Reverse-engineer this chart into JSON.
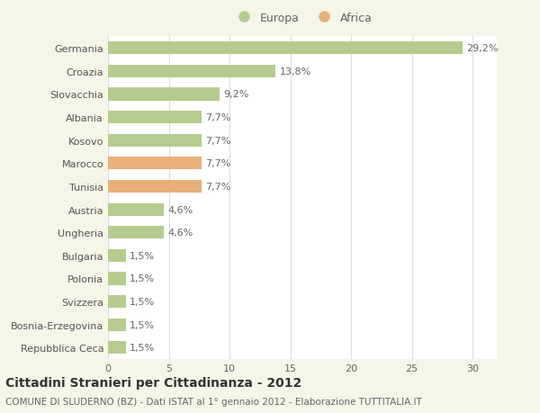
{
  "categories": [
    "Germania",
    "Croazia",
    "Slovacchia",
    "Albania",
    "Kosovo",
    "Marocco",
    "Tunisia",
    "Austria",
    "Ungheria",
    "Bulgaria",
    "Polonia",
    "Svizzera",
    "Bosnia-Erzegovina",
    "Repubblica Ceca"
  ],
  "values": [
    29.2,
    13.8,
    9.2,
    7.7,
    7.7,
    7.7,
    7.7,
    4.6,
    4.6,
    1.5,
    1.5,
    1.5,
    1.5,
    1.5
  ],
  "labels": [
    "29,2%",
    "13,8%",
    "9,2%",
    "7,7%",
    "7,7%",
    "7,7%",
    "7,7%",
    "4,6%",
    "4,6%",
    "1,5%",
    "1,5%",
    "1,5%",
    "1,5%",
    "1,5%"
  ],
  "continent": [
    "Europa",
    "Europa",
    "Europa",
    "Europa",
    "Europa",
    "Africa",
    "Africa",
    "Europa",
    "Europa",
    "Europa",
    "Europa",
    "Europa",
    "Europa",
    "Europa"
  ],
  "color_europa": "#b5cc8e",
  "color_africa": "#e8b07a",
  "background_color": "#f5f5e8",
  "plot_bg_color": "#ffffff",
  "grid_color": "#dddddd",
  "title": "Cittadini Stranieri per Cittadinanza - 2012",
  "subtitle": "COMUNE DI SLUDERNO (BZ) - Dati ISTAT al 1° gennaio 2012 - Elaborazione TUTTITALIA.IT",
  "xlim": [
    0,
    32
  ],
  "xticks": [
    0,
    5,
    10,
    15,
    20,
    25,
    30
  ],
  "legend_europa": "Europa",
  "legend_africa": "Africa",
  "bar_height": 0.55,
  "label_fontsize": 8,
  "ytick_fontsize": 8,
  "xtick_fontsize": 8,
  "title_fontsize": 10,
  "subtitle_fontsize": 7.5
}
